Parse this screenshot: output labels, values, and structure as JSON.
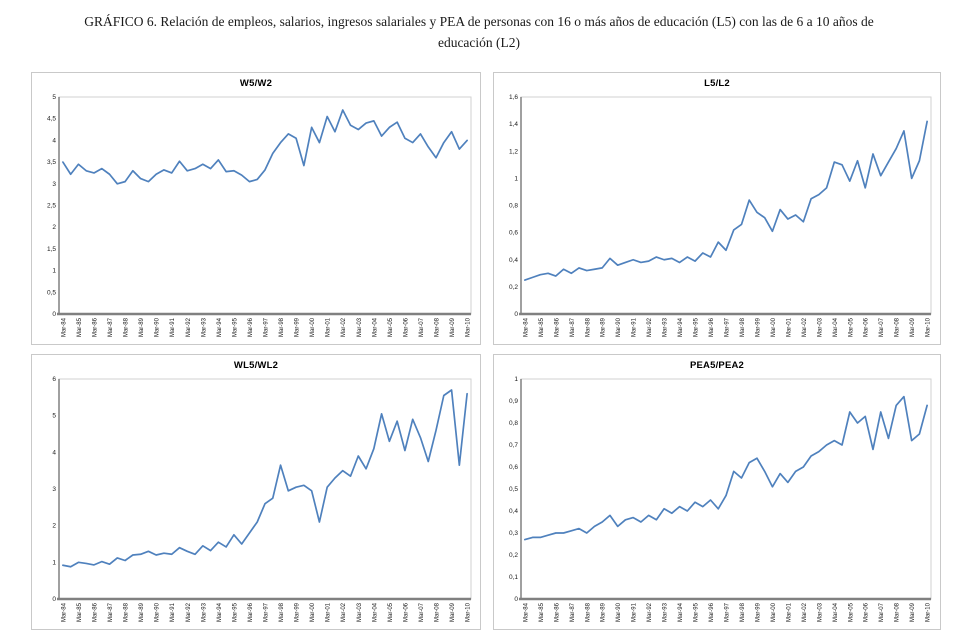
{
  "caption": {
    "line1": "GRÁFICO 6. Relación de empleos, salarios, ingresos salariales y PEA de personas con 16 o más años de educación (L5) con las de 6 a 10 años de",
    "line2": "educación (L2)"
  },
  "colors": {
    "series_line": "#4F81BD",
    "axis_line": "#808080",
    "plot_border": "#d2d2d2",
    "panel_border": "#c9c9c9",
    "tick_text": "#1a1a1a",
    "background": "#ffffff"
  },
  "x_tick_labels": [
    "Mar-84",
    "Mar-85",
    "Mar-86",
    "Mar-87",
    "Mar-88",
    "Mar-89",
    "Mar-90",
    "Mar-91",
    "Mar-92",
    "Mar-93",
    "Mar-94",
    "Mar-95",
    "Mar-96",
    "Mar-97",
    "Mar-98",
    "Mar-99",
    "Mar-00",
    "Mar-01",
    "Mar-02",
    "Mar-03",
    "Mar-04",
    "Mar-05",
    "Mar-06",
    "Mar-07",
    "Mar-08",
    "Mar-09",
    "Mar-10"
  ],
  "chart_data": [
    {
      "type": "line",
      "title": "W5/W2",
      "ylim": [
        0,
        5
      ],
      "ytick_labels": [
        "0",
        "0,5",
        "1",
        "1,5",
        "2",
        "2,5",
        "3",
        "3,5",
        "4",
        "4,5",
        "5"
      ],
      "grid": false,
      "legend": "none",
      "x_frequency": "semiannual 1984-2010",
      "values": [
        3.5,
        3.22,
        3.45,
        3.3,
        3.25,
        3.35,
        3.22,
        3.0,
        3.05,
        3.3,
        3.12,
        3.05,
        3.22,
        3.32,
        3.25,
        3.52,
        3.3,
        3.35,
        3.45,
        3.35,
        3.55,
        3.28,
        3.3,
        3.2,
        3.05,
        3.1,
        3.32,
        3.7,
        3.95,
        4.15,
        4.05,
        3.42,
        4.3,
        3.95,
        4.55,
        4.2,
        4.7,
        4.35,
        4.25,
        4.4,
        4.45,
        4.1,
        4.3,
        4.42,
        4.05,
        3.95,
        4.15,
        3.85,
        3.6,
        3.95,
        4.2,
        3.8,
        4.0
      ]
    },
    {
      "type": "line",
      "title": "L5/L2",
      "ylim": [
        0,
        1.6
      ],
      "ytick_labels": [
        "0",
        "0,2",
        "0,4",
        "0,6",
        "0,8",
        "1",
        "1,2",
        "1,4",
        "1,6"
      ],
      "grid": false,
      "legend": "none",
      "x_frequency": "semiannual 1984-2010",
      "values": [
        0.25,
        0.27,
        0.29,
        0.3,
        0.28,
        0.33,
        0.3,
        0.34,
        0.32,
        0.33,
        0.34,
        0.41,
        0.36,
        0.38,
        0.4,
        0.38,
        0.39,
        0.42,
        0.4,
        0.41,
        0.38,
        0.42,
        0.39,
        0.45,
        0.42,
        0.53,
        0.47,
        0.62,
        0.66,
        0.84,
        0.75,
        0.71,
        0.61,
        0.77,
        0.7,
        0.73,
        0.68,
        0.85,
        0.88,
        0.93,
        1.12,
        1.1,
        0.98,
        1.13,
        0.93,
        1.18,
        1.02,
        1.12,
        1.22,
        1.35,
        1.0,
        1.13,
        1.42
      ]
    },
    {
      "type": "line",
      "title": "WL5/WL2",
      "ylim": [
        0,
        6
      ],
      "ytick_labels": [
        "0",
        "1",
        "2",
        "3",
        "4",
        "5",
        "6"
      ],
      "grid": false,
      "legend": "none",
      "x_frequency": "semiannual 1984-2010",
      "values": [
        0.92,
        0.88,
        1.0,
        0.97,
        0.93,
        1.02,
        0.95,
        1.12,
        1.05,
        1.2,
        1.22,
        1.3,
        1.2,
        1.25,
        1.22,
        1.4,
        1.3,
        1.22,
        1.45,
        1.32,
        1.55,
        1.42,
        1.75,
        1.5,
        1.8,
        2.1,
        2.6,
        2.75,
        3.65,
        2.95,
        3.05,
        3.1,
        2.95,
        2.1,
        3.05,
        3.3,
        3.5,
        3.35,
        3.9,
        3.55,
        4.1,
        5.05,
        4.3,
        4.85,
        4.05,
        4.9,
        4.4,
        3.75,
        4.6,
        5.55,
        5.7,
        3.65,
        5.6
      ]
    },
    {
      "type": "line",
      "title": "PEA5/PEA2",
      "ylim": [
        0,
        1
      ],
      "ytick_labels": [
        "0",
        "0,1",
        "0,2",
        "0,3",
        "0,4",
        "0,5",
        "0,6",
        "0,7",
        "0,8",
        "0,9",
        "1"
      ],
      "grid": false,
      "legend": "none",
      "x_frequency": "semiannual 1984-2010",
      "values": [
        0.27,
        0.28,
        0.28,
        0.29,
        0.3,
        0.3,
        0.31,
        0.32,
        0.3,
        0.33,
        0.35,
        0.38,
        0.33,
        0.36,
        0.37,
        0.35,
        0.38,
        0.36,
        0.41,
        0.39,
        0.42,
        0.4,
        0.44,
        0.42,
        0.45,
        0.41,
        0.47,
        0.58,
        0.55,
        0.62,
        0.64,
        0.58,
        0.51,
        0.57,
        0.53,
        0.58,
        0.6,
        0.65,
        0.67,
        0.7,
        0.72,
        0.7,
        0.85,
        0.8,
        0.83,
        0.68,
        0.85,
        0.73,
        0.88,
        0.92,
        0.72,
        0.75,
        0.88
      ]
    }
  ]
}
